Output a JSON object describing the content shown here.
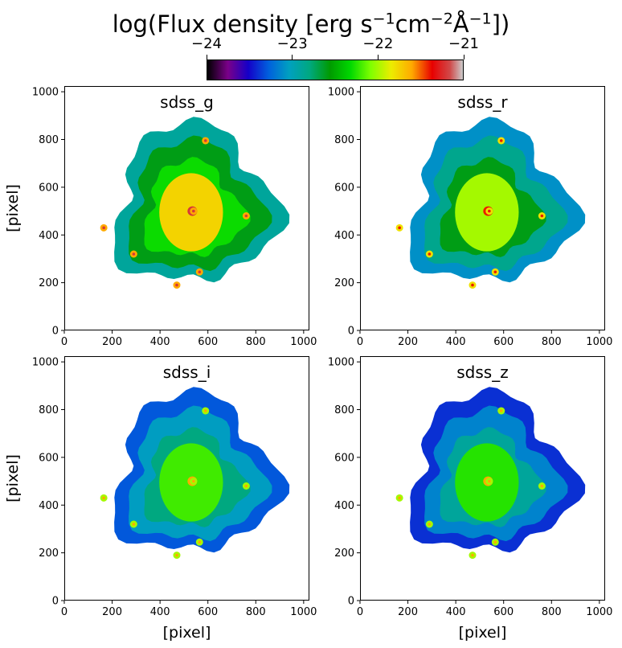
{
  "figure": {
    "colorbar": {
      "ticks": [
        "−24",
        "−23",
        "−22",
        "−21"
      ],
      "range": [
        -24,
        -21
      ],
      "colormap": "nipy_spectral",
      "orientation": "horizontal",
      "placement": "top"
    }
  },
  "chart_data": [
    {
      "type": "heatmap",
      "title": "sdss_g",
      "xlabel": "",
      "ylabel": "[pixel]",
      "xlim": [
        0,
        1024
      ],
      "ylim": [
        0,
        1024
      ],
      "xticks": [
        "0",
        "200",
        "400",
        "600",
        "800",
        "1000"
      ],
      "yticks": [
        "0",
        "200",
        "400",
        "600",
        "800",
        "1000"
      ],
      "bright_sources": [
        [
          540,
          500
        ],
        [
          590,
          795
        ],
        [
          470,
          190
        ],
        [
          565,
          245
        ],
        [
          165,
          430
        ],
        [
          760,
          480
        ],
        [
          290,
          320
        ]
      ],
      "core_level": -21.2,
      "disk_level": -22.3,
      "outer_level": -22.9
    },
    {
      "type": "heatmap",
      "title": "sdss_r",
      "xlabel": "",
      "ylabel": "",
      "xlim": [
        0,
        1024
      ],
      "ylim": [
        0,
        1024
      ],
      "xticks": [
        "0",
        "200",
        "400",
        "600",
        "800",
        "1000"
      ],
      "yticks": [
        "0",
        "200",
        "400",
        "600",
        "800",
        "1000"
      ],
      "bright_sources": [
        [
          540,
          500
        ],
        [
          590,
          795
        ],
        [
          470,
          190
        ],
        [
          565,
          245
        ],
        [
          165,
          430
        ],
        [
          760,
          480
        ],
        [
          290,
          320
        ]
      ],
      "core_level": -21.4,
      "disk_level": -22.6,
      "outer_level": -23.1
    },
    {
      "type": "heatmap",
      "title": "sdss_i",
      "xlabel": "[pixel]",
      "ylabel": "[pixel]",
      "xlim": [
        0,
        1024
      ],
      "ylim": [
        0,
        1024
      ],
      "xticks": [
        "0",
        "200",
        "400",
        "600",
        "800",
        "1000"
      ],
      "yticks": [
        "0",
        "200",
        "400",
        "600",
        "800",
        "1000"
      ],
      "bright_sources": [
        [
          540,
          500
        ],
        [
          590,
          795
        ],
        [
          470,
          190
        ],
        [
          565,
          245
        ],
        [
          165,
          430
        ],
        [
          760,
          480
        ],
        [
          290,
          320
        ]
      ],
      "core_level": -21.6,
      "disk_level": -22.8,
      "outer_level": -23.3
    },
    {
      "type": "heatmap",
      "title": "sdss_z",
      "xlabel": "[pixel]",
      "ylabel": "",
      "xlim": [
        0,
        1024
      ],
      "ylim": [
        0,
        1024
      ],
      "xticks": [
        "0",
        "200",
        "400",
        "600",
        "800",
        "1000"
      ],
      "yticks": [
        "0",
        "200",
        "400",
        "600",
        "800",
        "1000"
      ],
      "bright_sources": [
        [
          540,
          500
        ],
        [
          590,
          795
        ],
        [
          470,
          190
        ],
        [
          565,
          245
        ],
        [
          165,
          430
        ],
        [
          760,
          480
        ],
        [
          290,
          320
        ]
      ],
      "core_level": -21.6,
      "disk_level": -22.9,
      "outer_level": -23.4
    }
  ]
}
